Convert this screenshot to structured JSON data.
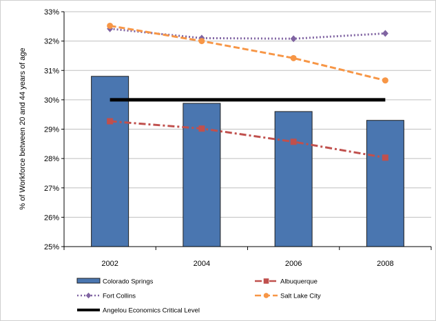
{
  "chart_data": {
    "type": "bar",
    "categories": [
      "2002",
      "2004",
      "2006",
      "2008"
    ],
    "ylabel": "% of Workforce between 20 and 44 years of age",
    "xlabel": "",
    "ylim": [
      25,
      33
    ],
    "y_ticks": [
      "25%",
      "26%",
      "27%",
      "28%",
      "29%",
      "30%",
      "31%",
      "32%",
      "33%"
    ],
    "grid": "horizontal",
    "legend_position": "bottom",
    "series": [
      {
        "name": "Colorado Springs",
        "kind": "bar",
        "color": "#4a76b0",
        "values": [
          30.8,
          29.88,
          29.6,
          29.3
        ]
      },
      {
        "name": "Albuquerque",
        "kind": "line",
        "style": "dash-dot",
        "marker": "square",
        "color": "#c0504d",
        "values": [
          29.27,
          29.02,
          28.57,
          28.03
        ]
      },
      {
        "name": "Fort Collins",
        "kind": "line",
        "style": "dotted",
        "marker": "diamond",
        "color": "#8064a2",
        "values": [
          32.42,
          32.1,
          32.08,
          32.26
        ]
      },
      {
        "name": "Salt Lake City",
        "kind": "line",
        "style": "dashed",
        "marker": "circle",
        "color": "#f79646",
        "values": [
          32.52,
          32.0,
          31.42,
          30.66
        ]
      },
      {
        "name": "Angelou Economics Critical Level",
        "kind": "line",
        "style": "solid",
        "marker": "none",
        "color": "#000000",
        "values": [
          30.0,
          30.0,
          30.0,
          30.0
        ]
      }
    ]
  }
}
